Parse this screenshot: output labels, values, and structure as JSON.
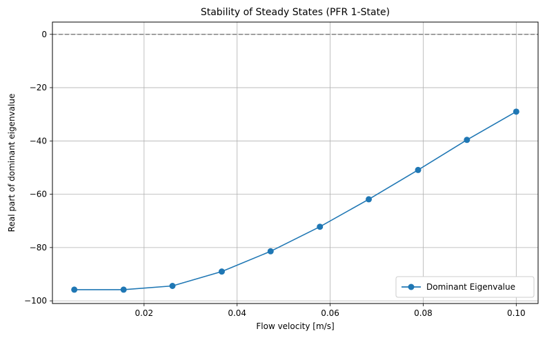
{
  "chart_data": {
    "type": "line",
    "title": "Stability of Steady States (PFR 1-State)",
    "xlabel": "Flow velocity [m/s]",
    "ylabel": "Real part of dominant eigenvalue",
    "xlim": [
      0.0003,
      0.1047
    ],
    "ylim": [
      -101,
      4.6
    ],
    "x_ticks": [
      0.02,
      0.04,
      0.06,
      0.08,
      0.1
    ],
    "x_tick_labels": [
      "0.02",
      "0.04",
      "0.06",
      "0.08",
      "0.10"
    ],
    "y_ticks": [
      0,
      -20,
      -40,
      -60,
      -80,
      -100
    ],
    "y_tick_labels": [
      "0",
      "−20",
      "−40",
      "−60",
      "−80",
      "−100"
    ],
    "grid": true,
    "reference_line": {
      "y": 0,
      "style": "dashed",
      "color": "#808080"
    },
    "legend": {
      "position": "bottom-right"
    },
    "series": [
      {
        "name": "Dominant Eigenvalue",
        "color": "#1f77b4",
        "marker": "circle",
        "x": [
          0.005,
          0.0156,
          0.0261,
          0.0367,
          0.0472,
          0.0578,
          0.0683,
          0.0789,
          0.0894,
          0.1
        ],
        "y": [
          -95.8,
          -95.8,
          -94.4,
          -89.0,
          -81.4,
          -72.2,
          -61.9,
          -50.9,
          -39.6,
          -29.0
        ]
      }
    ]
  }
}
